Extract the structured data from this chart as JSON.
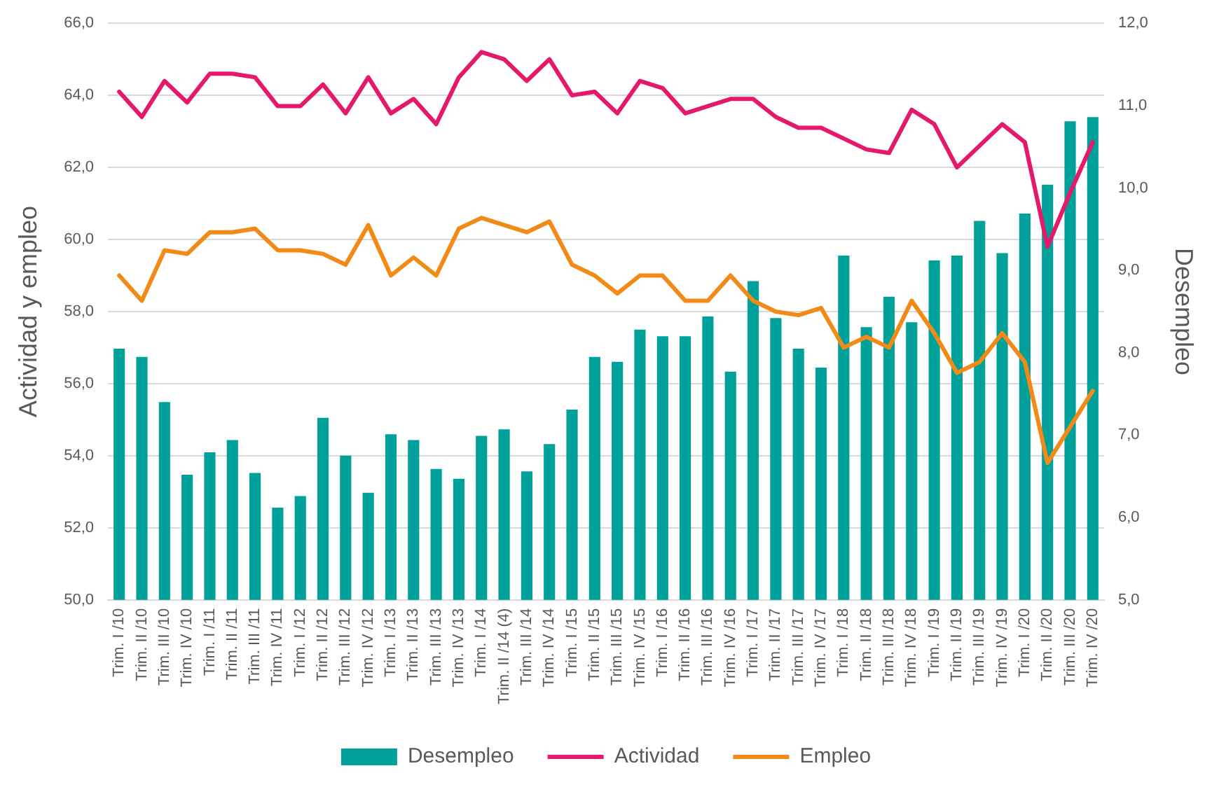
{
  "chart_data": {
    "type": "bar",
    "ylabel": "Actividad y empleo",
    "y2label": "Desempleo",
    "categories": [
      "Trim. I /10",
      "Trim. II /10",
      "Trim. III /10",
      "Trim. IV /10",
      "Trim. I /11",
      "Trim. II /11",
      "Trim. III /11",
      "Trim. IV /11",
      "Trim. I /12",
      "Trim. II /12",
      "Trim. III /12",
      "Trim. IV /12",
      "Trim. I /13",
      "Trim. II /13",
      "Trim. III /13",
      "Trim. IV /13",
      "Trim. I /14",
      "Trim. II /14 (4)",
      "Trim. III /14",
      "Trim. IV /14",
      "Trim. I /15",
      "Trim. II /15",
      "Trim. III /15",
      "Trim. IV /15",
      "Trim. I /16",
      "Trim. II /16",
      "Trim. III /16",
      "Trim. IV /16",
      "Trim. I /17",
      "Trim. II /17",
      "Trim. III /17",
      "Trim. IV /17",
      "Trim. I /18",
      "Trim. II /18",
      "Trim. III /18",
      "Trim. IV /18",
      "Trim. I /19",
      "Trim. II /19",
      "Trim. III /19",
      "Trim. IV /19",
      "Trim. I /20",
      "Trim. II /20",
      "Trim. III /20",
      "Trim. IV /20"
    ],
    "series": [
      {
        "name": "Desempleo",
        "axis": "y2",
        "color": "#00a19a",
        "values": [
          8.05,
          7.95,
          7.4,
          6.52,
          6.79,
          6.94,
          6.54,
          6.12,
          6.26,
          7.21,
          6.75,
          6.3,
          7.01,
          6.94,
          6.59,
          6.47,
          6.99,
          7.07,
          6.56,
          6.89,
          7.31,
          7.95,
          7.89,
          8.28,
          8.2,
          8.2,
          8.44,
          7.77,
          8.87,
          8.42,
          8.05,
          7.82,
          9.18,
          8.31,
          8.68,
          8.37,
          9.12,
          9.18,
          9.6,
          9.21,
          9.69,
          10.04,
          10.81,
          10.86
        ]
      },
      {
        "name": "Actividad",
        "type": "line",
        "color": "#e5186b",
        "values": [
          64.1,
          63.4,
          64.4,
          63.8,
          64.6,
          64.6,
          64.5,
          63.7,
          63.7,
          64.3,
          63.5,
          64.5,
          63.5,
          63.9,
          63.2,
          64.5,
          65.2,
          65.0,
          64.4,
          65.0,
          64.0,
          64.1,
          63.5,
          64.4,
          64.2,
          63.5,
          63.7,
          63.9,
          63.9,
          63.4,
          63.1,
          63.1,
          62.8,
          62.5,
          62.4,
          63.6,
          63.2,
          62.0,
          62.6,
          63.2,
          62.7,
          59.8,
          61.3,
          62.7
        ]
      },
      {
        "name": "Empleo",
        "type": "line",
        "color": "#f28a17",
        "values": [
          59.0,
          58.3,
          59.7,
          59.6,
          60.2,
          60.2,
          60.3,
          59.7,
          59.7,
          59.6,
          59.3,
          60.4,
          59.0,
          59.5,
          59.0,
          60.3,
          60.6,
          60.4,
          60.2,
          60.5,
          59.3,
          59.0,
          58.5,
          59.0,
          59.0,
          58.3,
          58.3,
          59.0,
          58.3,
          58.0,
          57.9,
          58.1,
          57.0,
          57.3,
          57.0,
          58.3,
          57.4,
          56.3,
          56.6,
          57.4,
          56.6,
          53.8,
          54.8,
          55.8
        ]
      }
    ],
    "ylim": [
      50,
      66
    ],
    "yticks": [
      {
        "value": 50,
        "label": "50,0"
      },
      {
        "value": 52,
        "label": "52,0"
      },
      {
        "value": 54,
        "label": "54,0"
      },
      {
        "value": 56,
        "label": "56,0"
      },
      {
        "value": 58,
        "label": "58,0"
      },
      {
        "value": 60,
        "label": "60,0"
      },
      {
        "value": 62,
        "label": "62,0"
      },
      {
        "value": 64,
        "label": "64,0"
      },
      {
        "value": 66,
        "label": "66,0"
      }
    ],
    "y2lim": [
      5,
      12
    ],
    "y2ticks": [
      {
        "value": 5,
        "label": "5,0"
      },
      {
        "value": 6,
        "label": "6,0"
      },
      {
        "value": 7,
        "label": "7,0"
      },
      {
        "value": 8,
        "label": "8,0"
      },
      {
        "value": 9,
        "label": "9,0"
      },
      {
        "value": 10,
        "label": "10,0"
      },
      {
        "value": 11,
        "label": "11,0"
      },
      {
        "value": 12,
        "label": "12,0"
      }
    ],
    "grid": "y",
    "legend": "bottom",
    "marker": "none",
    "line_style": "solid"
  }
}
